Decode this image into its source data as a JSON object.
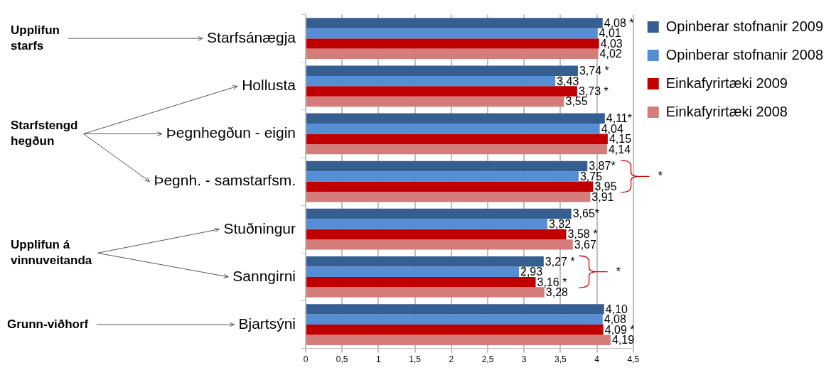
{
  "chart_data": {
    "type": "bar",
    "orientation": "horizontal",
    "categories": [
      "Starfsánægja",
      "Hollusta",
      "Þegnhegðun - eigin",
      "Þegnh. - samstarfsm.",
      "Stuðningur",
      "Sanngirni",
      "Bjartsýni"
    ],
    "series": [
      {
        "name": "Opinberar stofnanir 2009",
        "color": "#355e91",
        "values": [
          4.08,
          3.74,
          4.11,
          3.87,
          3.65,
          3.27,
          4.1
        ],
        "value_labels": [
          "4,08 *",
          "3,74 *",
          "4,11*",
          "3,87*",
          "3,65*",
          "3,27 *",
          "4,10"
        ]
      },
      {
        "name": "Opinberar stofnanir 2008",
        "color": "#558ed5",
        "values": [
          4.01,
          3.43,
          4.04,
          3.75,
          3.32,
          2.93,
          4.08
        ],
        "value_labels": [
          "4,01",
          "3,43",
          "4,04",
          "3,75",
          "3,32",
          "2,93",
          "4,08"
        ]
      },
      {
        "name": "Einkafyrirtæki 2009",
        "color": "#c00000",
        "values": [
          4.03,
          3.73,
          4.15,
          3.95,
          3.58,
          3.16,
          4.09
        ],
        "value_labels": [
          "4,03",
          "3,73 *",
          "4,15",
          "3,95",
          "3,58 *",
          "3,16 *",
          "4,09 *"
        ]
      },
      {
        "name": "Einkafyrirtæki 2008",
        "color": "#d47c7a",
        "values": [
          4.02,
          3.55,
          4.14,
          3.91,
          3.67,
          3.28,
          4.19
        ],
        "value_labels": [
          "4,02",
          "3,55",
          "4,14",
          "3,91",
          "3,67",
          "3,28",
          "4,19"
        ]
      }
    ],
    "xlim": [
      0,
      4.5
    ],
    "xticks": [
      0,
      {
        "value": 0.5,
        "label": "0,5"
      },
      1,
      {
        "value": 1.5,
        "label": "1,5"
      },
      2,
      {
        "value": 2.5,
        "label": "2,5"
      },
      3,
      {
        "value": 3.5,
        "label": "3,5"
      },
      4,
      {
        "value": 4.5,
        "label": "4,5"
      }
    ],
    "grid": "x",
    "legend": "right",
    "annotations": [
      "Upplifun starfs",
      "Starfstengd hegðun",
      "Upplifun á vinnuveitanda",
      "Grunn-viðhorf",
      "*",
      "*"
    ]
  }
}
